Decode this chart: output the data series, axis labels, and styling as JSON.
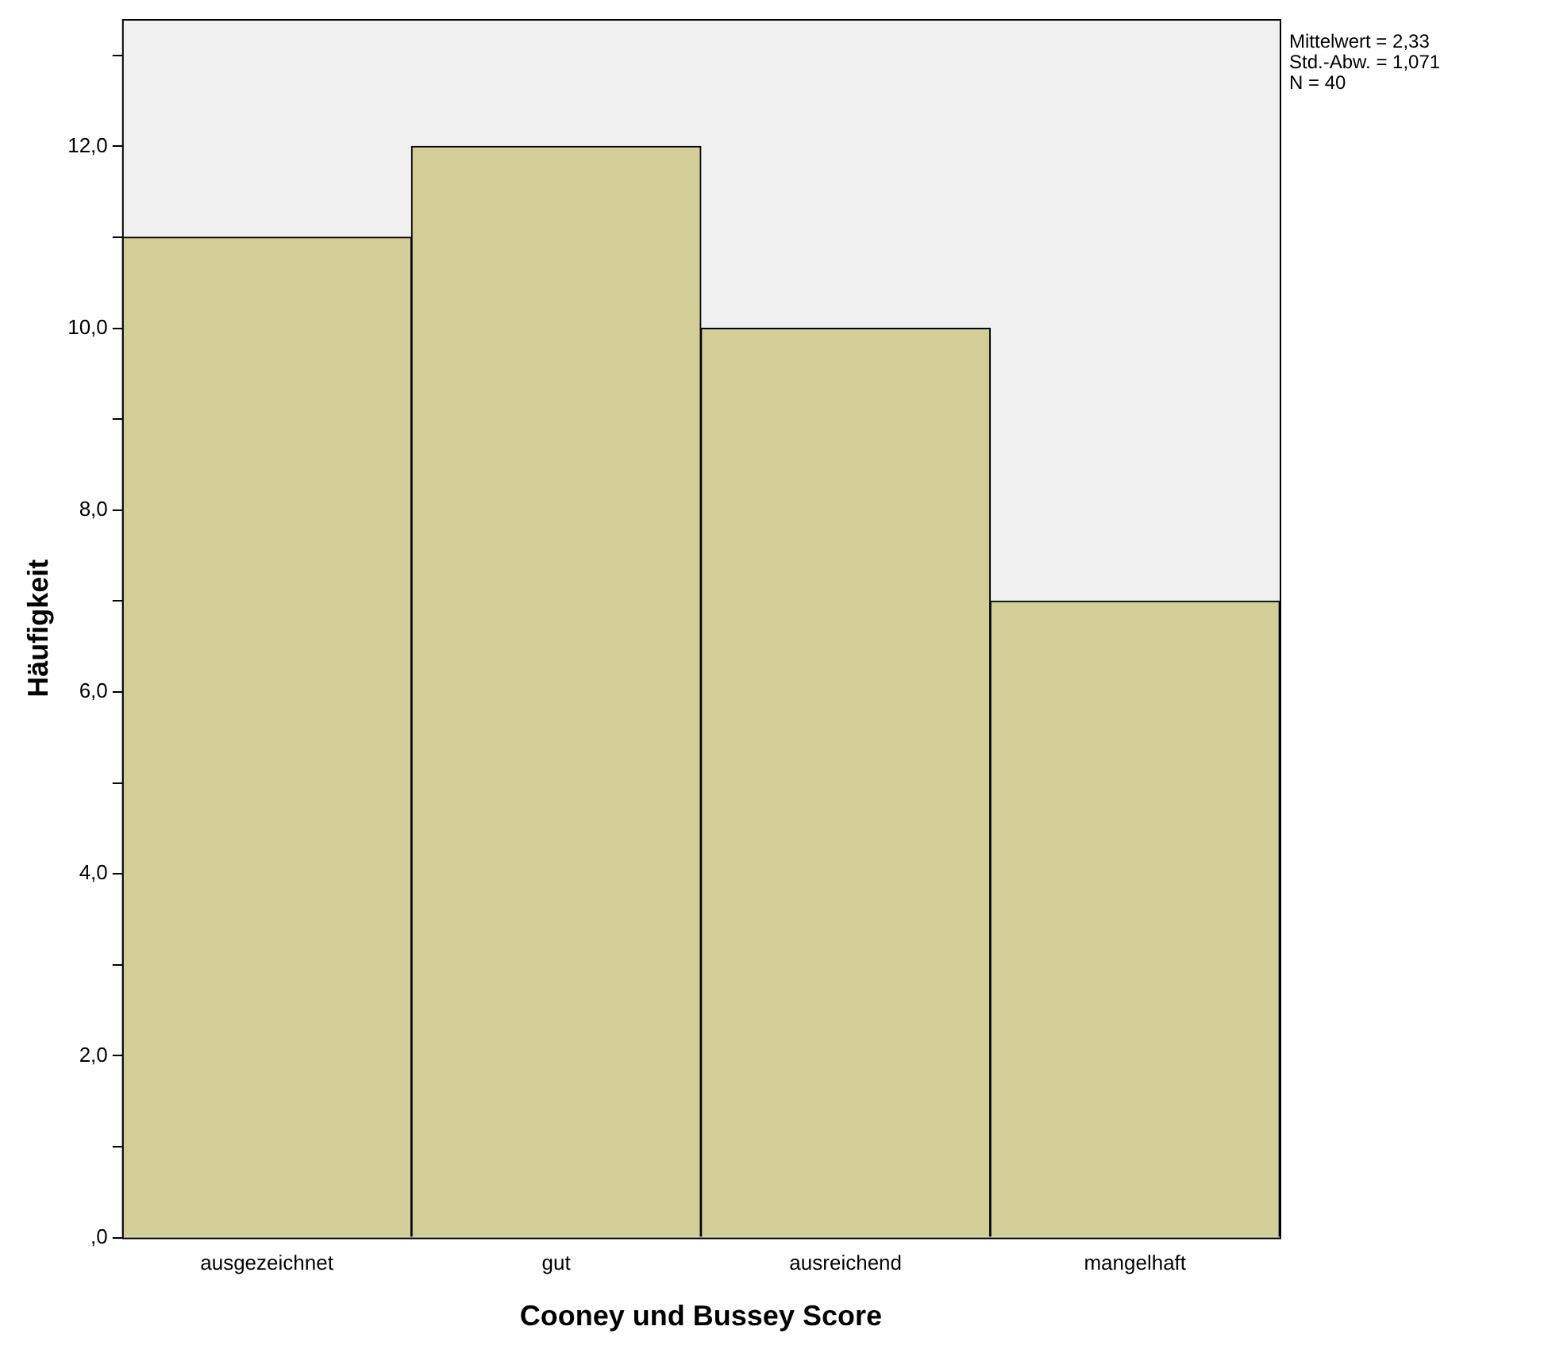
{
  "chart_data": {
    "type": "bar",
    "xlabel": "Cooney und Bussey Score",
    "ylabel": "Häufigkeit",
    "categories": [
      "ausgezeichnet",
      "gut",
      "ausreichend",
      "mangelhaft"
    ],
    "values": [
      11,
      12,
      10,
      7
    ],
    "color": "#d3ce97",
    "ylim": [
      0,
      13.4
    ],
    "yticks": [
      {
        "value": 0,
        "label": ",0"
      },
      {
        "value": 1,
        "label": null
      },
      {
        "value": 2,
        "label": "2,0"
      },
      {
        "value": 3,
        "label": null
      },
      {
        "value": 4,
        "label": "4,0"
      },
      {
        "value": 5,
        "label": null
      },
      {
        "value": 6,
        "label": "6,0"
      },
      {
        "value": 7,
        "label": null
      },
      {
        "value": 8,
        "label": "8,0"
      },
      {
        "value": 9,
        "label": null
      },
      {
        "value": 10,
        "label": "10,0"
      },
      {
        "value": 11,
        "label": null
      },
      {
        "value": 12,
        "label": "12,0"
      },
      {
        "value": 13,
        "label": null
      }
    ],
    "grid": false,
    "legend": false,
    "annotations": [
      "Mittelwert = 2,33",
      "Std.-Abw. = 1,071",
      "N = 40"
    ]
  }
}
